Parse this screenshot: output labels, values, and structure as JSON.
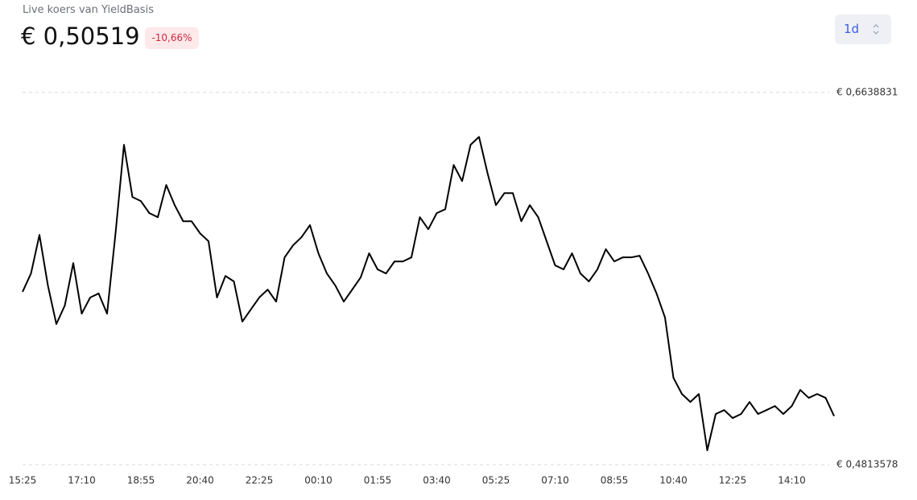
{
  "header": {
    "label": "Live koers van YieldBasis",
    "price": "€ 0,50519",
    "change": "-10,66%"
  },
  "controls": {
    "range": "1d"
  },
  "chart_data": {
    "type": "line",
    "x": [
      "15:25",
      "15:40",
      "15:55",
      "16:10",
      "16:25",
      "16:40",
      "16:55",
      "17:10",
      "17:25",
      "17:40",
      "17:55",
      "18:10",
      "18:25",
      "18:40",
      "18:55",
      "19:10",
      "19:25",
      "19:40",
      "19:55",
      "20:10",
      "20:25",
      "20:40",
      "20:55",
      "21:10",
      "21:25",
      "21:40",
      "21:55",
      "22:10",
      "22:25",
      "22:40",
      "22:55",
      "23:10",
      "23:25",
      "23:40",
      "23:55",
      "00:10",
      "00:25",
      "00:40",
      "00:55",
      "01:10",
      "01:25",
      "01:40",
      "01:55",
      "02:10",
      "02:25",
      "02:40",
      "02:55",
      "03:10",
      "03:25",
      "03:40",
      "03:55",
      "04:10",
      "04:25",
      "04:40",
      "04:55",
      "05:10",
      "05:25",
      "05:40",
      "05:55",
      "06:10",
      "06:25",
      "06:40",
      "06:55",
      "07:10",
      "07:25",
      "07:40",
      "07:55",
      "08:10",
      "08:25",
      "08:40",
      "08:55",
      "09:10",
      "09:25",
      "09:40",
      "09:55",
      "10:10",
      "10:25",
      "10:40",
      "10:55",
      "11:10",
      "11:25",
      "11:40",
      "11:55",
      "12:10",
      "12:25",
      "12:40",
      "12:55",
      "13:10",
      "13:25",
      "13:40",
      "13:55",
      "14:10",
      "14:25",
      "14:40",
      "14:55",
      "15:10",
      "15:25"
    ],
    "series": [
      {
        "name": "YieldBasis",
        "color": "#000000",
        "values": [
          0.5661,
          0.5751,
          0.594,
          0.5692,
          0.5503,
          0.5594,
          0.5802,
          0.5554,
          0.5633,
          0.5653,
          0.5554,
          0.5948,
          0.6382,
          0.6126,
          0.6106,
          0.6047,
          0.6027,
          0.6185,
          0.6086,
          0.6007,
          0.6007,
          0.5948,
          0.5909,
          0.5633,
          0.5739,
          0.5712,
          0.5515,
          0.5574,
          0.5633,
          0.5672,
          0.5613,
          0.583,
          0.5889,
          0.5929,
          0.5988,
          0.585,
          0.5751,
          0.5692,
          0.5613,
          0.5672,
          0.5732,
          0.585,
          0.5771,
          0.5751,
          0.581,
          0.581,
          0.583,
          0.6027,
          0.5968,
          0.6047,
          0.6066,
          0.6283,
          0.6204,
          0.6382,
          0.6421,
          0.6244,
          0.6086,
          0.6145,
          0.6145,
          0.6007,
          0.6086,
          0.6027,
          0.5909,
          0.5791,
          0.5771,
          0.585,
          0.5751,
          0.5712,
          0.5771,
          0.587,
          0.581,
          0.583,
          0.583,
          0.5838,
          0.5751,
          0.5653,
          0.5535,
          0.5239,
          0.516,
          0.5121,
          0.516,
          0.4884,
          0.5062,
          0.5081,
          0.5042,
          0.5062,
          0.5121,
          0.5062,
          0.5081,
          0.5101,
          0.5062,
          0.5101,
          0.518,
          0.5141,
          0.516,
          0.5141,
          0.5052
        ]
      }
    ],
    "xticks": [
      "15:25",
      "17:10",
      "18:55",
      "20:40",
      "22:25",
      "00:10",
      "01:55",
      "03:40",
      "05:25",
      "07:10",
      "08:55",
      "10:40",
      "12:25",
      "14:10"
    ],
    "ylim": [
      0.4813578,
      0.6638831
    ],
    "yticks": [
      {
        "value": 0.4813578,
        "label": "€ 0,4813578"
      },
      {
        "value": 0.6638831,
        "label": "€ 0,6638831"
      }
    ],
    "grid": true
  }
}
